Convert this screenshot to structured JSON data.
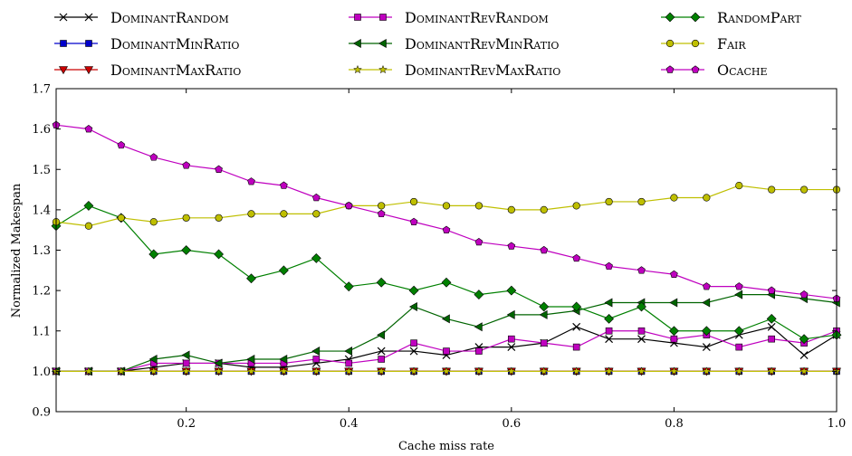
{
  "chart_data": {
    "type": "line",
    "title": "",
    "xlabel": "Cache miss rate",
    "ylabel": "Normalized Makespan",
    "xlim": [
      0.04,
      1.0
    ],
    "ylim": [
      0.9,
      1.7
    ],
    "xticks": [
      0.2,
      0.4,
      0.6,
      0.8,
      1.0
    ],
    "xtick_labels": [
      "0.2",
      "0.4",
      "0.6",
      "0.8",
      "1.0"
    ],
    "yticks": [
      0.9,
      1.0,
      1.1,
      1.2,
      1.3,
      1.4,
      1.5,
      1.6,
      1.7
    ],
    "ytick_labels": [
      "0.9",
      "1.0",
      "1.1",
      "1.2",
      "1.3",
      "1.4",
      "1.5",
      "1.6",
      "1.7"
    ],
    "grid": false,
    "legend_position": "top",
    "x": [
      0.04,
      0.08,
      0.12,
      0.16,
      0.2,
      0.24,
      0.28,
      0.32,
      0.36,
      0.4,
      0.44,
      0.48,
      0.52,
      0.56,
      0.6,
      0.64,
      0.68,
      0.72,
      0.76,
      0.8,
      0.84,
      0.88,
      0.92,
      0.96,
      1.0
    ],
    "series": [
      {
        "name": "DominantRandom",
        "color": "#000000",
        "marker": "x",
        "values": [
          1.0,
          1.0,
          1.0,
          1.01,
          1.02,
          1.02,
          1.01,
          1.01,
          1.02,
          1.03,
          1.05,
          1.05,
          1.04,
          1.06,
          1.06,
          1.07,
          1.11,
          1.08,
          1.08,
          1.07,
          1.06,
          1.09,
          1.11,
          1.04,
          1.09
        ]
      },
      {
        "name": "DominantMinRatio",
        "color": "#0000cc",
        "marker": "square",
        "values": [
          1.0,
          1.0,
          1.0,
          1.0,
          1.0,
          1.0,
          1.0,
          1.0,
          1.0,
          1.0,
          1.0,
          1.0,
          1.0,
          1.0,
          1.0,
          1.0,
          1.0,
          1.0,
          1.0,
          1.0,
          1.0,
          1.0,
          1.0,
          1.0,
          1.0
        ]
      },
      {
        "name": "DominantMaxRatio",
        "color": "#cc0000",
        "marker": "triangle-down",
        "values": [
          1.0,
          1.0,
          1.0,
          1.0,
          1.0,
          1.0,
          1.0,
          1.0,
          1.0,
          1.0,
          1.0,
          1.0,
          1.0,
          1.0,
          1.0,
          1.0,
          1.0,
          1.0,
          1.0,
          1.0,
          1.0,
          1.0,
          1.0,
          1.0,
          1.0
        ]
      },
      {
        "name": "DominantRevRandom",
        "color": "#bf00bf",
        "marker": "square",
        "values": [
          1.0,
          1.0,
          1.0,
          1.02,
          1.02,
          1.02,
          1.02,
          1.02,
          1.03,
          1.02,
          1.03,
          1.07,
          1.05,
          1.05,
          1.08,
          1.07,
          1.06,
          1.1,
          1.1,
          1.08,
          1.09,
          1.06,
          1.08,
          1.07,
          1.1
        ]
      },
      {
        "name": "DominantRevMinRatio",
        "color": "#006400",
        "marker": "triangle-left",
        "values": [
          1.0,
          1.0,
          1.0,
          1.03,
          1.04,
          1.02,
          1.03,
          1.03,
          1.05,
          1.05,
          1.09,
          1.16,
          1.13,
          1.11,
          1.14,
          1.14,
          1.15,
          1.17,
          1.17,
          1.17,
          1.17,
          1.19,
          1.19,
          1.18,
          1.17
        ]
      },
      {
        "name": "DominantRevMaxRatio",
        "color": "#bfbf00",
        "marker": "star",
        "values": [
          1.0,
          1.0,
          1.0,
          1.0,
          1.0,
          1.0,
          1.0,
          1.0,
          1.0,
          1.0,
          1.0,
          1.0,
          1.0,
          1.0,
          1.0,
          1.0,
          1.0,
          1.0,
          1.0,
          1.0,
          1.0,
          1.0,
          1.0,
          1.0,
          1.0
        ]
      },
      {
        "name": "RandomPart",
        "color": "#008000",
        "marker": "diamond",
        "values": [
          1.36,
          1.41,
          1.38,
          1.29,
          1.3,
          1.29,
          1.23,
          1.25,
          1.28,
          1.21,
          1.22,
          1.2,
          1.22,
          1.19,
          1.2,
          1.16,
          1.16,
          1.13,
          1.16,
          1.1,
          1.1,
          1.1,
          1.13,
          1.08,
          1.09
        ]
      },
      {
        "name": "Fair",
        "color": "#bfbf00",
        "marker": "circle",
        "values": [
          1.37,
          1.36,
          1.38,
          1.37,
          1.38,
          1.38,
          1.39,
          1.39,
          1.39,
          1.41,
          1.41,
          1.42,
          1.41,
          1.41,
          1.4,
          1.4,
          1.41,
          1.42,
          1.42,
          1.43,
          1.43,
          1.46,
          1.45,
          1.45,
          1.45
        ]
      },
      {
        "name": "Ocache",
        "color": "#bf00bf",
        "marker": "pentagon",
        "values": [
          1.61,
          1.6,
          1.56,
          1.53,
          1.51,
          1.5,
          1.47,
          1.46,
          1.43,
          1.41,
          1.39,
          1.37,
          1.35,
          1.32,
          1.31,
          1.3,
          1.28,
          1.26,
          1.25,
          1.24,
          1.21,
          1.21,
          1.2,
          1.19,
          1.18
        ]
      }
    ]
  }
}
